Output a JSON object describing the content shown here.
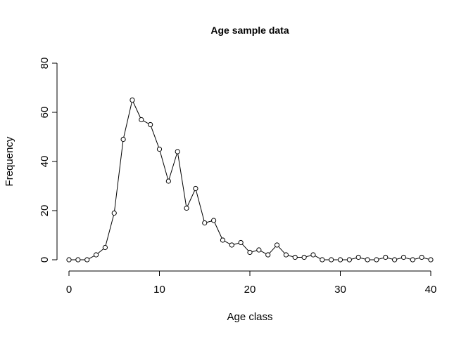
{
  "chart_data": {
    "type": "line",
    "title": "Age sample data",
    "xlabel": "Age class",
    "ylabel": "Frequency",
    "xlim": [
      0,
      40
    ],
    "ylim": [
      0,
      80
    ],
    "xticks": [
      0,
      10,
      20,
      30,
      40
    ],
    "yticks": [
      0,
      20,
      40,
      60,
      80
    ],
    "grid": false,
    "markers": "open-circle",
    "series": [
      {
        "x": [
          0,
          1,
          2,
          3,
          4,
          5,
          6,
          7,
          8,
          9,
          10,
          11,
          12,
          13,
          14,
          15,
          16,
          17,
          18,
          19,
          20,
          21,
          22,
          23,
          24,
          25,
          26,
          27,
          28,
          29,
          30,
          31,
          32,
          33,
          34,
          35,
          36,
          37,
          38,
          39,
          40
        ],
        "values": [
          0,
          0,
          0,
          2,
          5,
          19,
          49,
          65,
          57,
          55,
          45,
          32,
          44,
          21,
          29,
          15,
          16,
          8,
          6,
          7,
          3,
          4,
          2,
          6,
          2,
          1,
          1,
          2,
          0,
          0,
          0,
          0,
          1,
          0,
          0,
          1,
          0,
          1,
          0,
          1,
          0
        ]
      }
    ]
  }
}
